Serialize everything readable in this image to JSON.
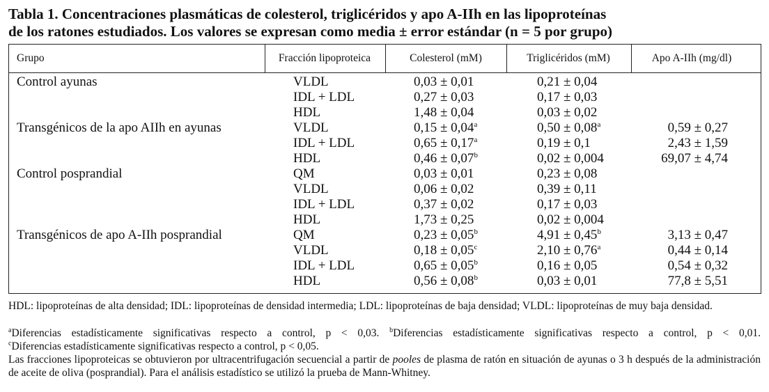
{
  "title": {
    "line1": "Tabla 1. Concentraciones plasmáticas de colesterol, triglicéridos y apo A-IIh en las lipoproteínas",
    "line2": "de los ratones estudiados. Los valores se expresan como media ± error estándar (n = 5 por grupo)"
  },
  "table": {
    "header": [
      "Grupo",
      "Fracción lipoproteica",
      "Colesterol (mM)",
      "Triglicéridos (mM)",
      "Apo A-IIh (mg/dl)"
    ],
    "rows": [
      {
        "group": "Control ayunas",
        "fraction": "VLDL",
        "chol": "0,03 ± 0,01",
        "tg": "0,21 ± 0,04"
      },
      {
        "fraction": "IDL + LDL",
        "chol": "0,27 ± 0,03",
        "tg": "0,17 ± 0,03"
      },
      {
        "fraction": "HDL",
        "chol": "1,48 ± 0,04",
        "tg": "0,03 ± 0,02"
      },
      {
        "group": "Transgénicos de la apo AIIh en ayunas",
        "fraction": "VLDL",
        "chol": "0,15 ± 0,04",
        "chol_sup": "a",
        "tg": "0,50 ± 0,08",
        "tg_sup": "a",
        "apo": "0,59 ± 0,27"
      },
      {
        "fraction": "IDL + LDL",
        "chol": "0,65 ± 0,17",
        "chol_sup": "a",
        "tg": "0,19 ± 0,1",
        "apo": "2,43 ± 1,59"
      },
      {
        "fraction": "HDL",
        "chol": "0,46 ± 0,07",
        "chol_sup": "b",
        "tg": "0,02 ± 0,004",
        "apo": "69,07 ± 4,74"
      },
      {
        "group": "Control posprandial",
        "fraction": "QM",
        "chol": "0,03 ± 0,01",
        "tg": "0,23 ± 0,08"
      },
      {
        "fraction": "VLDL",
        "chol": "0,06 ± 0,02",
        "tg": "0,39 ± 0,11"
      },
      {
        "fraction": "IDL + LDL",
        "chol": "0,37 ± 0,02",
        "tg": "0,17 ± 0,03"
      },
      {
        "fraction": "HDL",
        "chol": "1,73 ± 0,25",
        "tg": "0,02 ± 0,004"
      },
      {
        "group": "Transgénicos de apo A-IIh posprandial",
        "fraction": "QM",
        "chol": "0,23 ± 0,05",
        "chol_sup": "b",
        "tg": "4,91 ± 0,45",
        "tg_sup": "b",
        "apo": "3,13 ± 0,47"
      },
      {
        "fraction": "VLDL",
        "chol": "0,18 ± 0,05",
        "chol_sup": "c",
        "tg": "2,10 ± 0,76",
        "tg_sup": "a",
        "apo": "0,44 ± 0,14"
      },
      {
        "fraction": "IDL + LDL",
        "chol": "0,65 ± 0,05",
        "chol_sup": "b",
        "tg": "0,16 ± 0,05",
        "apo": "0,54 ± 0,32"
      },
      {
        "fraction": "HDL",
        "chol": "0,56 ± 0,08",
        "chol_sup": "b",
        "tg": "0,03 ± 0,01",
        "apo": "77,8 ± 5,51"
      }
    ]
  },
  "footnotes": [
    [
      {
        "text": "HDL: lipoproteínas de alta densidad; IDL: lipoproteínas de densidad intermedia; LDL: lipoproteínas de baja densidad; VLDL: lipoproteínas de muy baja densidad."
      }
    ],
    [
      {
        "sup": "a"
      },
      {
        "text": "Diferencias estadísticamente significativas respecto a control, p < 0,03. "
      },
      {
        "sup": "b"
      },
      {
        "text": "Diferencias estadísticamente significativas respecto a control, p < 0,01."
      }
    ],
    [
      {
        "sup": "c"
      },
      {
        "text": "Diferencias estadísticamente significativas respecto a control, p < 0,05."
      }
    ],
    [
      {
        "text": "Las fracciones lipoproteicas se obtuvieron por ultracentrifugación secuencial a partir de "
      },
      {
        "italic": "pooles"
      },
      {
        "text": " de plasma de ratón en situación de ayunas o 3 h después de la administración de aceite de oliva (posprandial). Para el análisis estadístico se utilizó la prueba de Mann-Whitney."
      }
    ]
  ]
}
